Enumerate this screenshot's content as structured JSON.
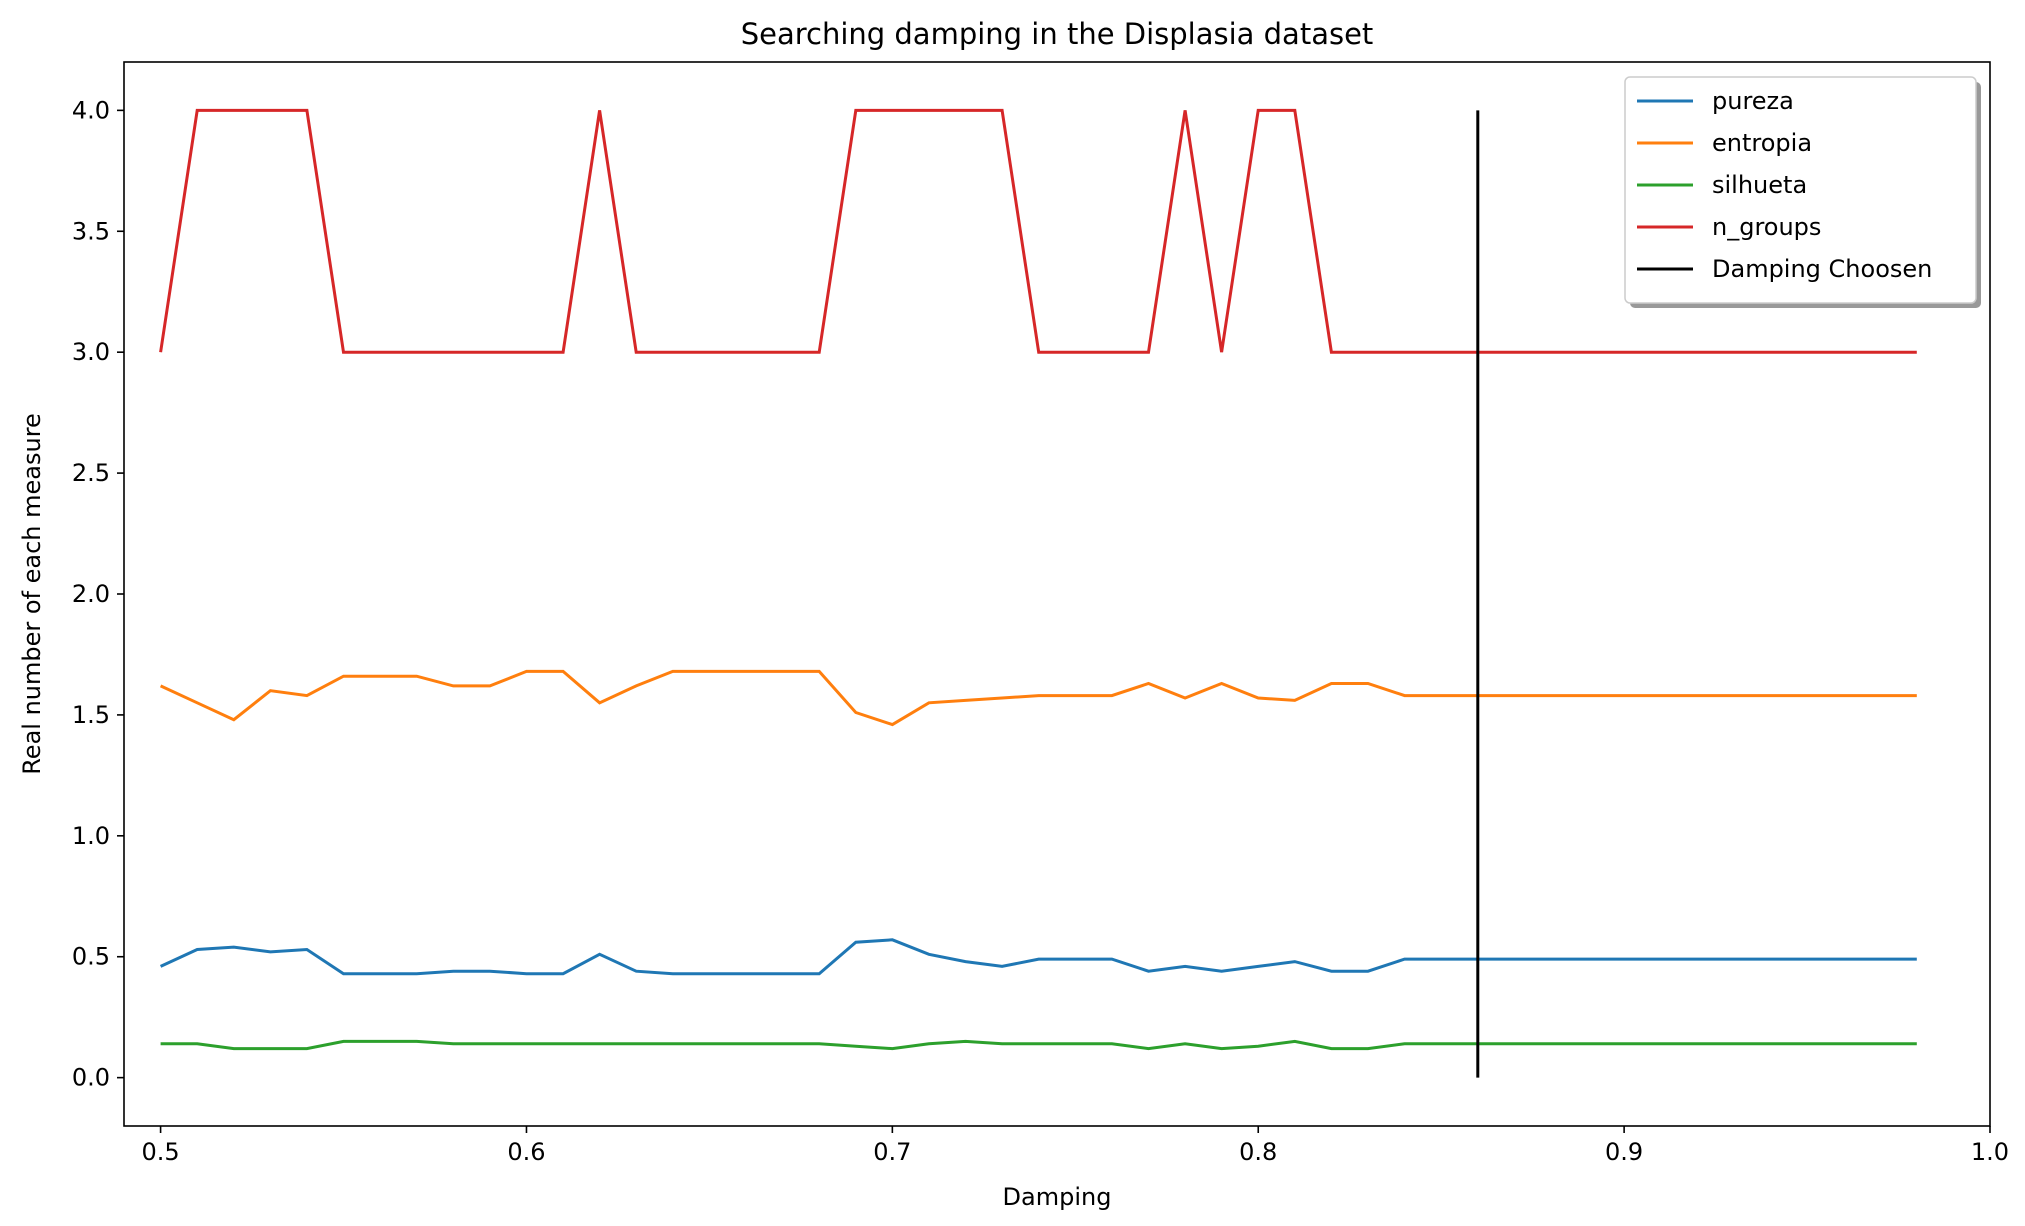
{
  "chart_data": {
    "type": "line",
    "title": "Searching damping in the Displasia dataset",
    "xlabel": "Damping",
    "ylabel": "Real number of each measure",
    "xlim": [
      0.49,
      1.0
    ],
    "ylim": [
      -0.2,
      4.2
    ],
    "xticks": [
      "0.5",
      "0.6",
      "0.7",
      "0.8",
      "0.9",
      "1.0"
    ],
    "yticks": [
      "0.0",
      "0.5",
      "1.0",
      "1.5",
      "2.0",
      "2.5",
      "3.0",
      "3.5",
      "4.0"
    ],
    "grid": false,
    "legend_position": "top-right",
    "x": [
      0.5,
      0.51,
      0.52,
      0.53,
      0.54,
      0.55,
      0.56,
      0.57,
      0.58,
      0.59,
      0.6,
      0.61,
      0.62,
      0.63,
      0.64,
      0.65,
      0.66,
      0.67,
      0.68,
      0.69,
      0.7,
      0.71,
      0.72,
      0.73,
      0.74,
      0.75,
      0.76,
      0.77,
      0.78,
      0.79,
      0.8,
      0.81,
      0.82,
      0.83,
      0.84,
      0.85,
      0.86,
      0.87,
      0.88,
      0.89,
      0.9,
      0.91,
      0.92,
      0.93,
      0.94,
      0.95,
      0.96,
      0.97,
      0.98
    ],
    "series": [
      {
        "name": "pureza",
        "color": "#1f77b4",
        "values": [
          0.46,
          0.53,
          0.54,
          0.52,
          0.53,
          0.43,
          0.43,
          0.43,
          0.44,
          0.44,
          0.43,
          0.43,
          0.51,
          0.44,
          0.43,
          0.43,
          0.43,
          0.43,
          0.43,
          0.56,
          0.57,
          0.51,
          0.48,
          0.46,
          0.49,
          0.49,
          0.49,
          0.44,
          0.46,
          0.44,
          0.46,
          0.48,
          0.44,
          0.44,
          0.49,
          0.49,
          0.49,
          0.49,
          0.49,
          0.49,
          0.49,
          0.49,
          0.49,
          0.49,
          0.49,
          0.49,
          0.49,
          0.49,
          0.49
        ]
      },
      {
        "name": "entropia",
        "color": "#ff7f0e",
        "values": [
          1.62,
          1.55,
          1.48,
          1.6,
          1.58,
          1.66,
          1.66,
          1.66,
          1.62,
          1.62,
          1.68,
          1.68,
          1.55,
          1.62,
          1.68,
          1.68,
          1.68,
          1.68,
          1.68,
          1.51,
          1.46,
          1.55,
          1.56,
          1.57,
          1.58,
          1.58,
          1.58,
          1.63,
          1.57,
          1.63,
          1.57,
          1.56,
          1.63,
          1.63,
          1.58,
          1.58,
          1.58,
          1.58,
          1.58,
          1.58,
          1.58,
          1.58,
          1.58,
          1.58,
          1.58,
          1.58,
          1.58,
          1.58,
          1.58
        ]
      },
      {
        "name": "silhueta",
        "color": "#2ca02c",
        "values": [
          0.14,
          0.14,
          0.12,
          0.12,
          0.12,
          0.15,
          0.15,
          0.15,
          0.14,
          0.14,
          0.14,
          0.14,
          0.14,
          0.14,
          0.14,
          0.14,
          0.14,
          0.14,
          0.14,
          0.13,
          0.12,
          0.14,
          0.15,
          0.14,
          0.14,
          0.14,
          0.14,
          0.12,
          0.14,
          0.12,
          0.13,
          0.15,
          0.12,
          0.12,
          0.14,
          0.14,
          0.14,
          0.14,
          0.14,
          0.14,
          0.14,
          0.14,
          0.14,
          0.14,
          0.14,
          0.14,
          0.14,
          0.14,
          0.14
        ]
      },
      {
        "name": "n_groups",
        "color": "#d62728",
        "values": [
          3,
          4,
          4,
          4,
          4,
          3,
          3,
          3,
          3,
          3,
          3,
          3,
          4,
          3,
          3,
          3,
          3,
          3,
          3,
          4,
          4,
          4,
          4,
          4,
          3,
          3,
          3,
          3,
          4,
          3,
          4,
          4,
          3,
          3,
          3,
          3,
          3,
          3,
          3,
          3,
          3,
          3,
          3,
          3,
          3,
          3,
          3,
          3,
          3
        ]
      },
      {
        "name": "Damping Choosen",
        "color": "#000000",
        "x": [
          0.86,
          0.86
        ],
        "values": [
          0,
          4
        ]
      }
    ]
  }
}
